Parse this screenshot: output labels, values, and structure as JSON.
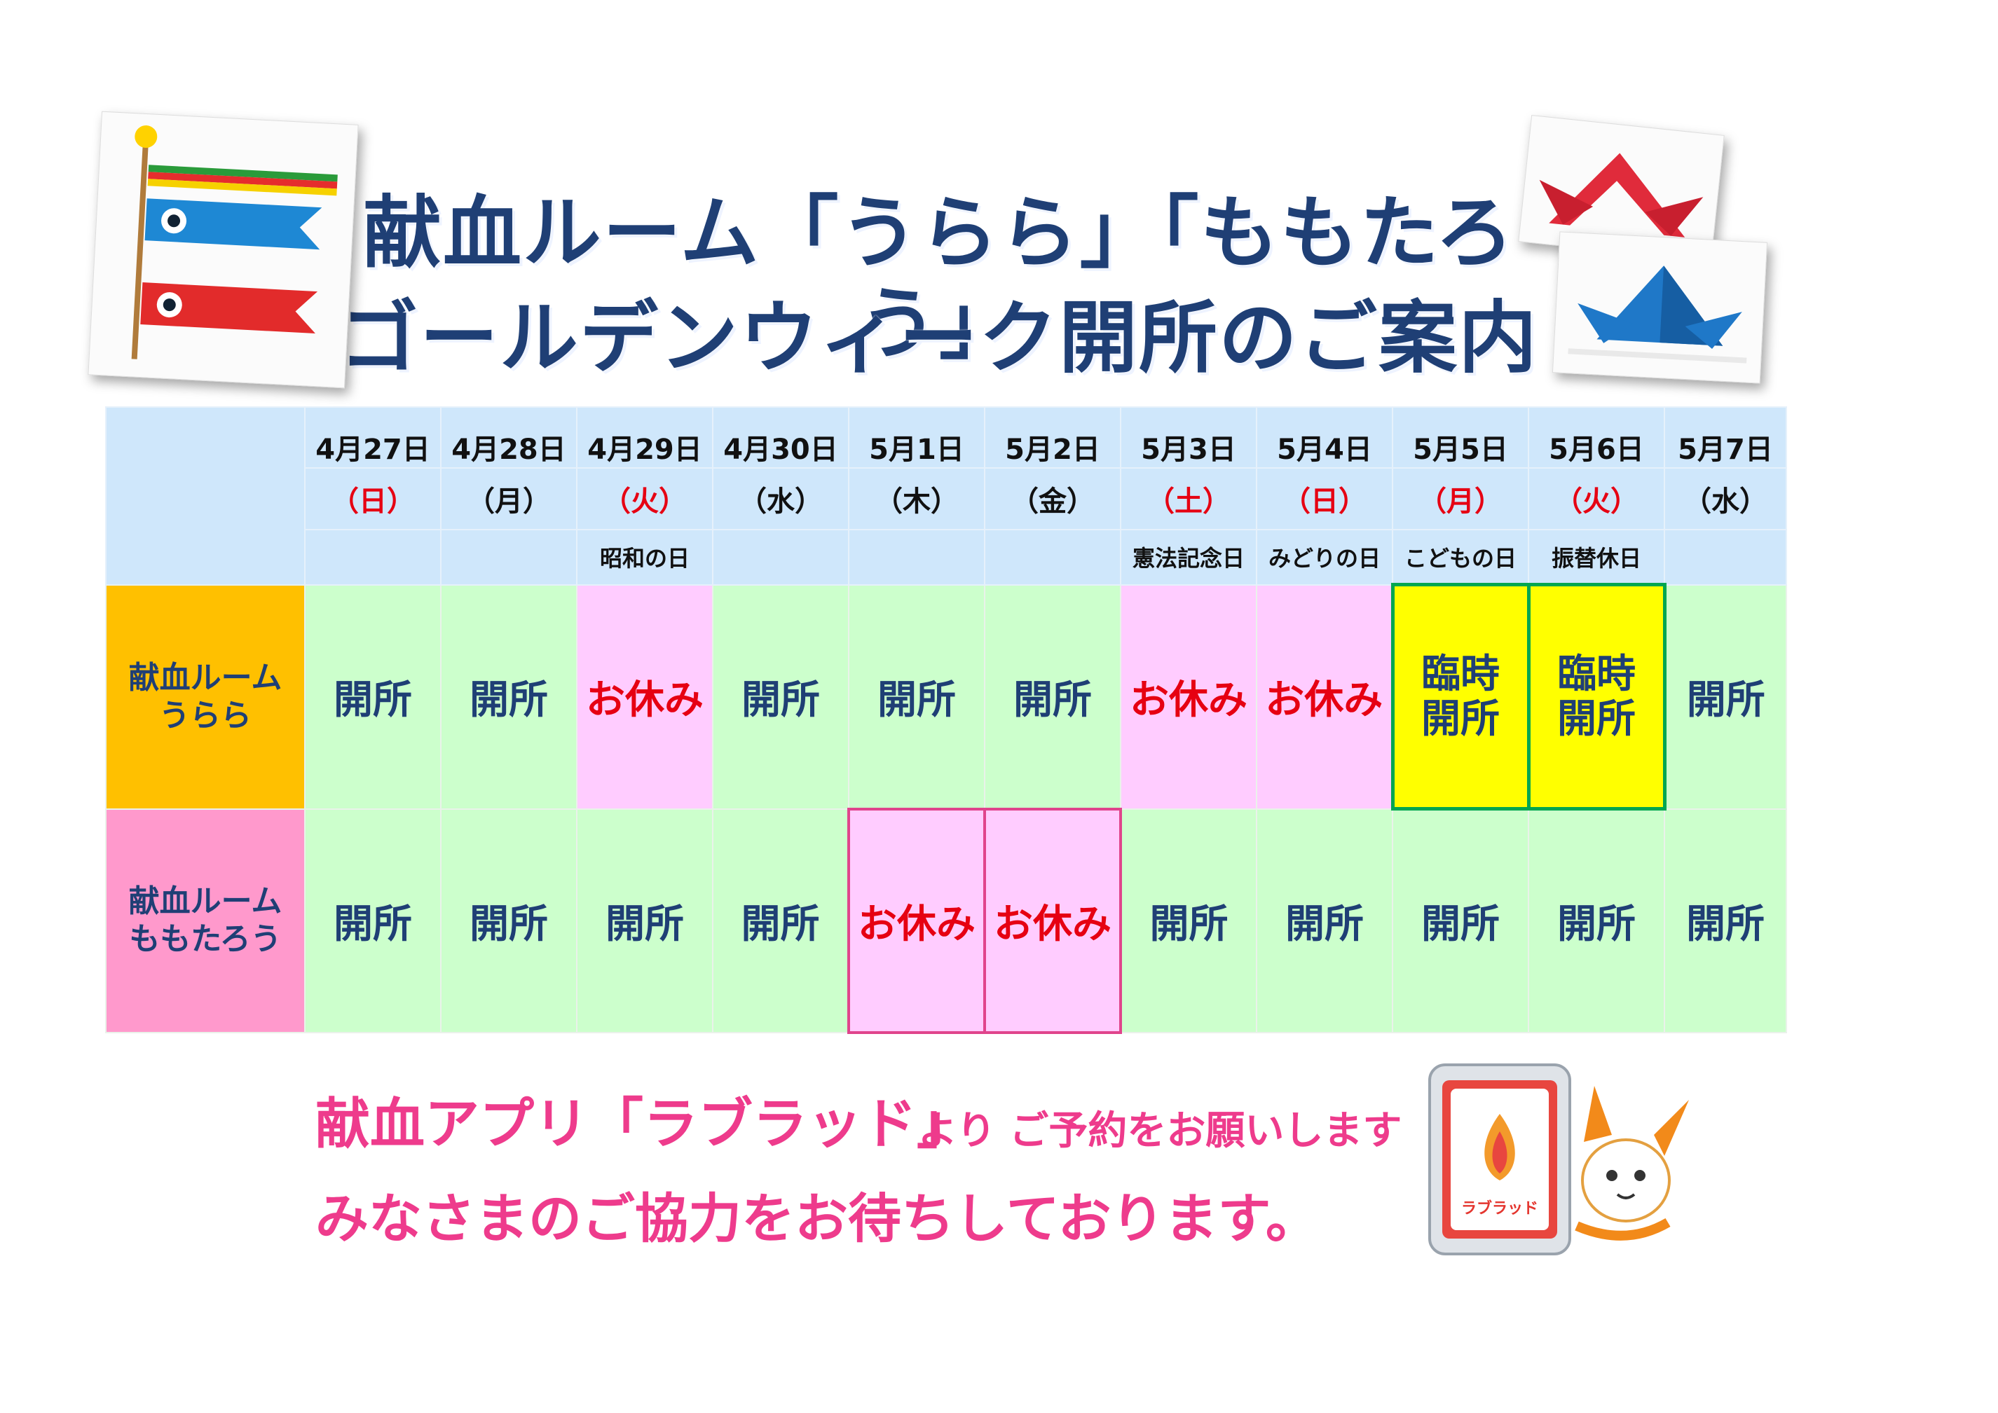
{
  "title": {
    "line1": "献血ルーム「うらら」「ももたろう」",
    "line2": "ゴールデンウィーク開所のご案内"
  },
  "days": [
    {
      "date": "4月27日",
      "dow": "（日）",
      "dow_red": true,
      "holiday": ""
    },
    {
      "date": "4月28日",
      "dow": "（月）",
      "dow_red": false,
      "holiday": ""
    },
    {
      "date": "4月29日",
      "dow": "（火）",
      "dow_red": true,
      "holiday": "昭和の日"
    },
    {
      "date": "4月30日",
      "dow": "（水）",
      "dow_red": false,
      "holiday": ""
    },
    {
      "date": "5月1日",
      "dow": "（木）",
      "dow_red": false,
      "holiday": ""
    },
    {
      "date": "5月2日",
      "dow": "（金）",
      "dow_red": false,
      "holiday": ""
    },
    {
      "date": "5月3日",
      "dow": "（土）",
      "dow_red": true,
      "holiday": "憲法記念日"
    },
    {
      "date": "5月4日",
      "dow": "（日）",
      "dow_red": true,
      "holiday": "みどりの日"
    },
    {
      "date": "5月5日",
      "dow": "（月）",
      "dow_red": true,
      "holiday": "こどもの日"
    },
    {
      "date": "5月6日",
      "dow": "（火）",
      "dow_red": true,
      "holiday": "振替休日"
    },
    {
      "date": "5月7日",
      "dow": "（水）",
      "dow_red": false,
      "holiday": ""
    }
  ],
  "rooms": [
    {
      "name_line1": "献血ルーム",
      "name_line2": "うらら",
      "color": "#ffc000",
      "status": [
        {
          "text": "開所",
          "type": "open"
        },
        {
          "text": "開所",
          "type": "open"
        },
        {
          "text": "お休み",
          "type": "closed"
        },
        {
          "text": "開所",
          "type": "open"
        },
        {
          "text": "開所",
          "type": "open"
        },
        {
          "text": "開所",
          "type": "open"
        },
        {
          "text": "お休み",
          "type": "closed"
        },
        {
          "text": "お休み",
          "type": "closed"
        },
        {
          "text_line1": "臨時",
          "text_line2": "開所",
          "type": "temp"
        },
        {
          "text_line1": "臨時",
          "text_line2": "開所",
          "type": "temp"
        },
        {
          "text": "開所",
          "type": "open"
        }
      ]
    },
    {
      "name_line1": "献血ルーム",
      "name_line2": "ももたろう",
      "color": "#ff99cc",
      "status": [
        {
          "text": "開所",
          "type": "open"
        },
        {
          "text": "開所",
          "type": "open"
        },
        {
          "text": "開所",
          "type": "open"
        },
        {
          "text": "開所",
          "type": "open"
        },
        {
          "text": "お休み",
          "type": "closed-boxed"
        },
        {
          "text": "お休み",
          "type": "closed-boxed"
        },
        {
          "text": "開所",
          "type": "open"
        },
        {
          "text": "開所",
          "type": "open"
        },
        {
          "text": "開所",
          "type": "open"
        },
        {
          "text": "開所",
          "type": "open"
        },
        {
          "text": "開所",
          "type": "open"
        }
      ]
    }
  ],
  "message": {
    "line1_big": "献血アプリ「ラブラッド」",
    "line1_small": "より ご予約をお願いします",
    "line2": "みなさまのご協力をお待ちしております。"
  },
  "app_logo_text": "ラブラッド",
  "icons": [
    "koinobori-icon",
    "kabuto-red-icon",
    "kabuto-blue-icon",
    "smartphone-icon",
    "mascot-icon"
  ],
  "colors": {
    "title": "#1f3f75",
    "header_bg": "#cfe7fb",
    "open_bg": "#ccffcc",
    "closed_bg": "#ffccff",
    "temp_bg": "#ffff00",
    "temp_border": "#00a650",
    "red": "#e60012",
    "message_pink": "#ee3b8c"
  }
}
